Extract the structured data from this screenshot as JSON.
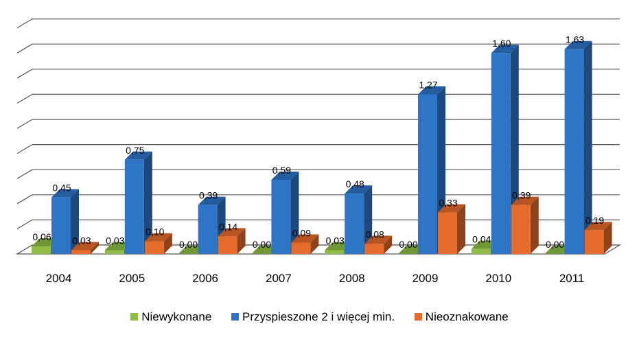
{
  "chart_data": {
    "type": "bar",
    "categories": [
      "2004",
      "2005",
      "2006",
      "2007",
      "2008",
      "2009",
      "2010",
      "2011"
    ],
    "series": [
      {
        "name": "Niewykonane",
        "values": [
          0.06,
          0.03,
          0.0,
          0.0,
          0.03,
          0.0,
          0.04,
          0.0
        ],
        "labels": [
          "0,06",
          "0,03",
          "0,00",
          "0,00",
          "0,03",
          "0,00",
          "0,04",
          "0,00"
        ],
        "color": "#8fbd45"
      },
      {
        "name": "Przyspieszone 2 i więcej min.",
        "values": [
          0.45,
          0.75,
          0.39,
          0.59,
          0.48,
          1.27,
          1.6,
          1.63
        ],
        "labels": [
          "0,45",
          "0,75",
          "0,39",
          "0,59",
          "0,48",
          "1,27",
          "1,60",
          "1,63"
        ],
        "color": "#2e75c8"
      },
      {
        "name": "Nieoznakowane",
        "values": [
          0.03,
          0.1,
          0.14,
          0.09,
          0.08,
          0.33,
          0.39,
          0.19
        ],
        "labels": [
          "0,03",
          "0,10",
          "0,14",
          "0,09",
          "0,08",
          "0,33",
          "0,39",
          "0,19"
        ],
        "color": "#e56c2c"
      }
    ],
    "ylim": [
      0,
      1.8
    ],
    "grid": true,
    "legend_position": "bottom",
    "style": "3d-clustered-column"
  }
}
